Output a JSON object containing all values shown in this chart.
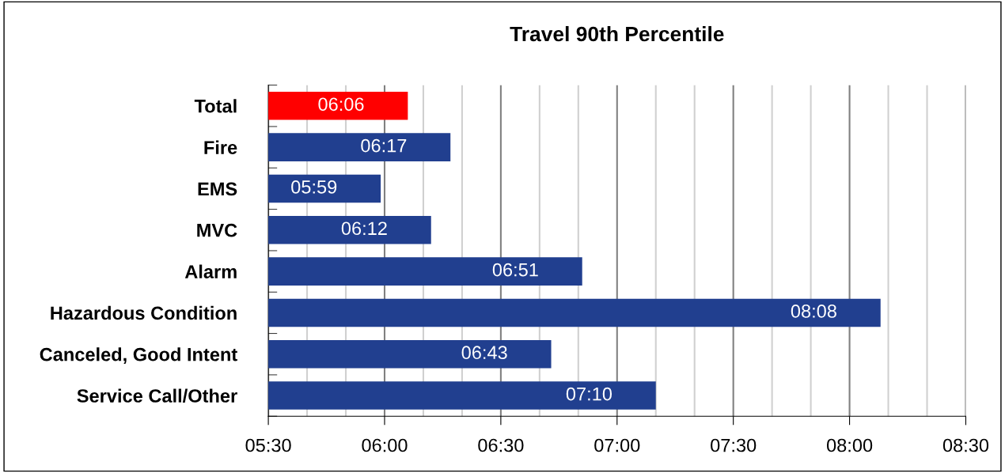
{
  "chart_data": {
    "type": "bar",
    "orientation": "horizontal",
    "title": "Travel 90th Percentile",
    "categories": [
      "Total",
      "Fire",
      "EMS",
      "MVC",
      "Alarm",
      "Hazardous Condition",
      "Canceled, Good Intent",
      "Service Call/Other"
    ],
    "values": [
      366,
      377,
      359,
      372,
      411,
      488,
      403,
      430
    ],
    "value_labels": [
      "06:06",
      "06:17",
      "05:59",
      "06:12",
      "06:51",
      "08:08",
      "06:43",
      "07:10"
    ],
    "colors": [
      "#ff0000",
      "#213f8f",
      "#213f8f",
      "#213f8f",
      "#213f8f",
      "#213f8f",
      "#213f8f",
      "#213f8f"
    ],
    "xlim": [
      330,
      510
    ],
    "xticks": [
      {
        "value": 330,
        "label": "05:30"
      },
      {
        "value": 340,
        "label": null
      },
      {
        "value": 350,
        "label": null
      },
      {
        "value": 360,
        "label": "06:00"
      },
      {
        "value": 370,
        "label": null
      },
      {
        "value": 380,
        "label": null
      },
      {
        "value": 390,
        "label": "06:30"
      },
      {
        "value": 400,
        "label": null
      },
      {
        "value": 410,
        "label": null
      },
      {
        "value": 420,
        "label": "07:00"
      },
      {
        "value": 430,
        "label": null
      },
      {
        "value": 440,
        "label": null
      },
      {
        "value": 450,
        "label": "07:30"
      },
      {
        "value": 460,
        "label": null
      },
      {
        "value": 470,
        "label": null
      },
      {
        "value": 480,
        "label": "08:00"
      },
      {
        "value": 490,
        "label": null
      },
      {
        "value": 500,
        "label": null
      },
      {
        "value": 510,
        "label": "08:30"
      }
    ],
    "grid": "x",
    "legend": false
  }
}
